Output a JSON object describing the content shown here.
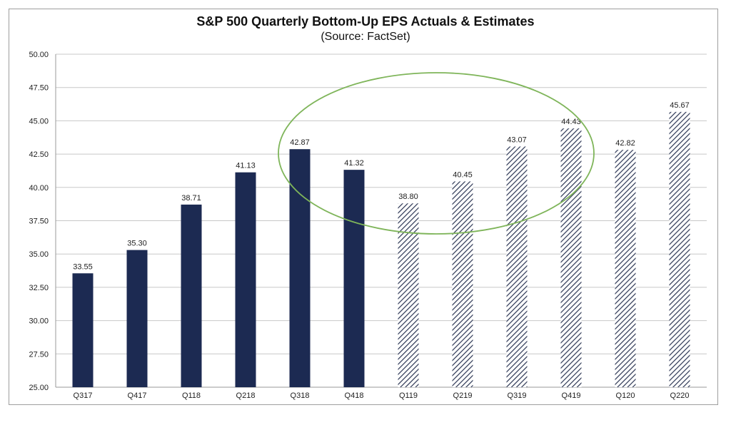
{
  "chart_data": {
    "type": "bar",
    "title": "S&P 500 Quarterly Bottom-Up EPS Actuals & Estimates",
    "subtitle": "(Source: FactSet)",
    "xlabel": "",
    "ylabel": "",
    "categories": [
      "Q317",
      "Q417",
      "Q118",
      "Q218",
      "Q318",
      "Q418",
      "Q119",
      "Q219",
      "Q319",
      "Q419",
      "Q120",
      "Q220"
    ],
    "values": [
      33.55,
      35.3,
      38.71,
      41.13,
      42.87,
      41.32,
      38.8,
      40.45,
      43.07,
      44.43,
      42.82,
      45.67
    ],
    "bar_style": [
      "solid",
      "solid",
      "solid",
      "solid",
      "solid",
      "solid",
      "hatched",
      "hatched",
      "hatched",
      "hatched",
      "hatched",
      "hatched"
    ],
    "ylim": [
      25,
      50
    ],
    "yticks": [
      "25.00",
      "27.50",
      "30.00",
      "32.50",
      "35.00",
      "37.50",
      "40.00",
      "42.50",
      "45.00",
      "47.50",
      "50.00"
    ],
    "grid": true,
    "legend": "none",
    "annotation": {
      "type": "ellipse",
      "encloses": [
        "Q318",
        "Q418",
        "Q119",
        "Q219",
        "Q319",
        "Q419"
      ]
    },
    "colors": {
      "solid_bar": "#1c2a52",
      "hatch": "#2b3553",
      "gridline": "#c8c8c8",
      "axis": "#9a9a9a",
      "annotation": "#7fb55a"
    }
  }
}
